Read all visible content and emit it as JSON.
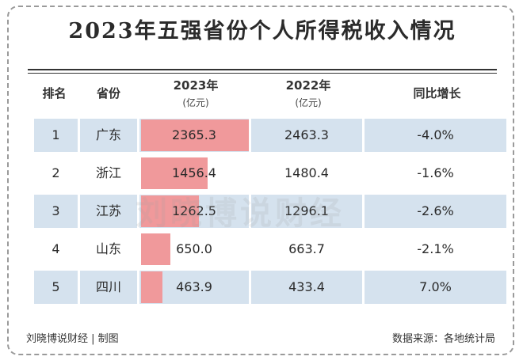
{
  "title": "2023年五强省份个人所得税收入情况",
  "headers": {
    "rank": "排名",
    "province": "省份",
    "y2023": "2023年",
    "y2022": "2022年",
    "growth": "同比增长",
    "unit": "(亿元)"
  },
  "watermark": "刘晓博说财经",
  "footer": {
    "left": "刘晓博说财经 | 制图",
    "right": "数据来源：各地统计局"
  },
  "colors": {
    "bar": "#f0999b",
    "row_shade": "#d5e2ee"
  },
  "chart_data": {
    "type": "table",
    "bar_max": 2365.3,
    "rows": [
      {
        "rank": "1",
        "province": "广东",
        "v2023": 2365.3,
        "v2023_label": "2365.3",
        "v2022": "2463.3",
        "growth": "-4.0%"
      },
      {
        "rank": "2",
        "province": "浙江",
        "v2023": 1456.4,
        "v2023_label": "1456.4",
        "v2022": "1480.4",
        "growth": "-1.6%"
      },
      {
        "rank": "3",
        "province": "江苏",
        "v2023": 1262.5,
        "v2023_label": "1262.5",
        "v2022": "1296.1",
        "growth": "-2.6%"
      },
      {
        "rank": "4",
        "province": "山东",
        "v2023": 650.0,
        "v2023_label": "650.0",
        "v2022": "663.7",
        "growth": "-2.1%"
      },
      {
        "rank": "5",
        "province": "四川",
        "v2023": 463.9,
        "v2023_label": "463.9",
        "v2022": "433.4",
        "growth": "7.0%"
      }
    ]
  }
}
